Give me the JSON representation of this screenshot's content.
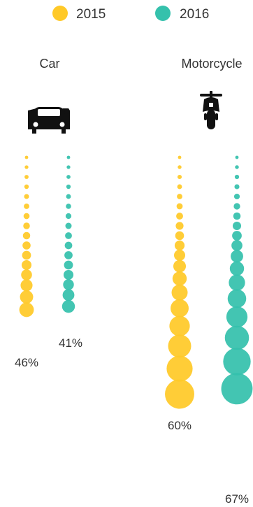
{
  "chart_data": {
    "type": "scatter",
    "description_style": "stacked proportional dot columns",
    "legend": {
      "placement": "top-center",
      "items": [
        {
          "label": "2015",
          "color": "#FFC928"
        },
        {
          "label": "2016",
          "color": "#35C1AC"
        }
      ]
    },
    "groups": [
      {
        "name": "Car",
        "icon": "car-icon",
        "values": {
          "2015": "46%",
          "2016": "41%"
        }
      },
      {
        "name": "Motorcycle",
        "icon": "motorcycle-icon",
        "values": {
          "2015": "60%",
          "2016": "67%"
        }
      }
    ],
    "series": [
      {
        "name": "2015",
        "values": [
          46,
          60
        ]
      },
      {
        "name": "2016",
        "values": [
          41,
          67
        ]
      }
    ],
    "categories": [
      "Car",
      "Motorcycle"
    ],
    "colors": {
      "2015": "#FFC928",
      "2016": "#35C1AC"
    }
  }
}
